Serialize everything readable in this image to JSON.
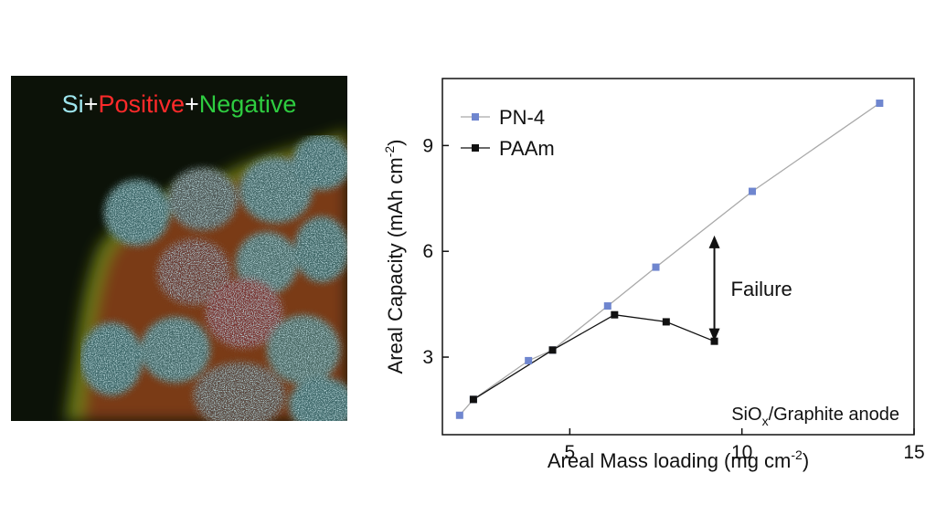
{
  "micrograph": {
    "label_parts": [
      {
        "text": "Si",
        "color": "#9ee6ee"
      },
      {
        "text": "+",
        "color": "#ffffff"
      },
      {
        "text": "Positive",
        "color": "#ff2a2a"
      },
      {
        "text": "+",
        "color": "#ffffff"
      },
      {
        "text": "Negative",
        "color": "#2ecc40"
      }
    ]
  },
  "chart_data": {
    "type": "line",
    "xlabel_parts": [
      "Areal Mass loading (mg cm",
      "-2",
      ")"
    ],
    "ylabel_parts": [
      "Areal Capacity (mAh cm",
      "-2",
      ")"
    ],
    "xlim": [
      1.3,
      15
    ],
    "ylim": [
      0.8,
      10.9
    ],
    "x_ticks": [
      5,
      10,
      15
    ],
    "y_ticks": [
      3,
      6,
      9
    ],
    "legend_position": "top-left",
    "series": [
      {
        "name": "PN-4",
        "color": "#6f86cf",
        "line_color": "#a9a9a9",
        "x": [
          1.8,
          2.2,
          3.8,
          4.5,
          6.1,
          7.5,
          10.3,
          14.0
        ],
        "y": [
          1.35,
          1.8,
          2.9,
          3.2,
          4.45,
          5.55,
          7.7,
          10.2
        ]
      },
      {
        "name": "PAAm",
        "color": "#111111",
        "line_color": "#111111",
        "x": [
          2.2,
          4.5,
          6.3,
          7.8,
          9.2
        ],
        "y": [
          1.8,
          3.2,
          4.2,
          4.0,
          3.45
        ]
      }
    ],
    "annotations": {
      "failure": {
        "text": "Failure",
        "x": 9.2,
        "y_from": 3.45,
        "y_to": 6.45
      },
      "anode": {
        "parts": [
          "SiO",
          "x",
          "/Graphite anode"
        ]
      }
    }
  }
}
